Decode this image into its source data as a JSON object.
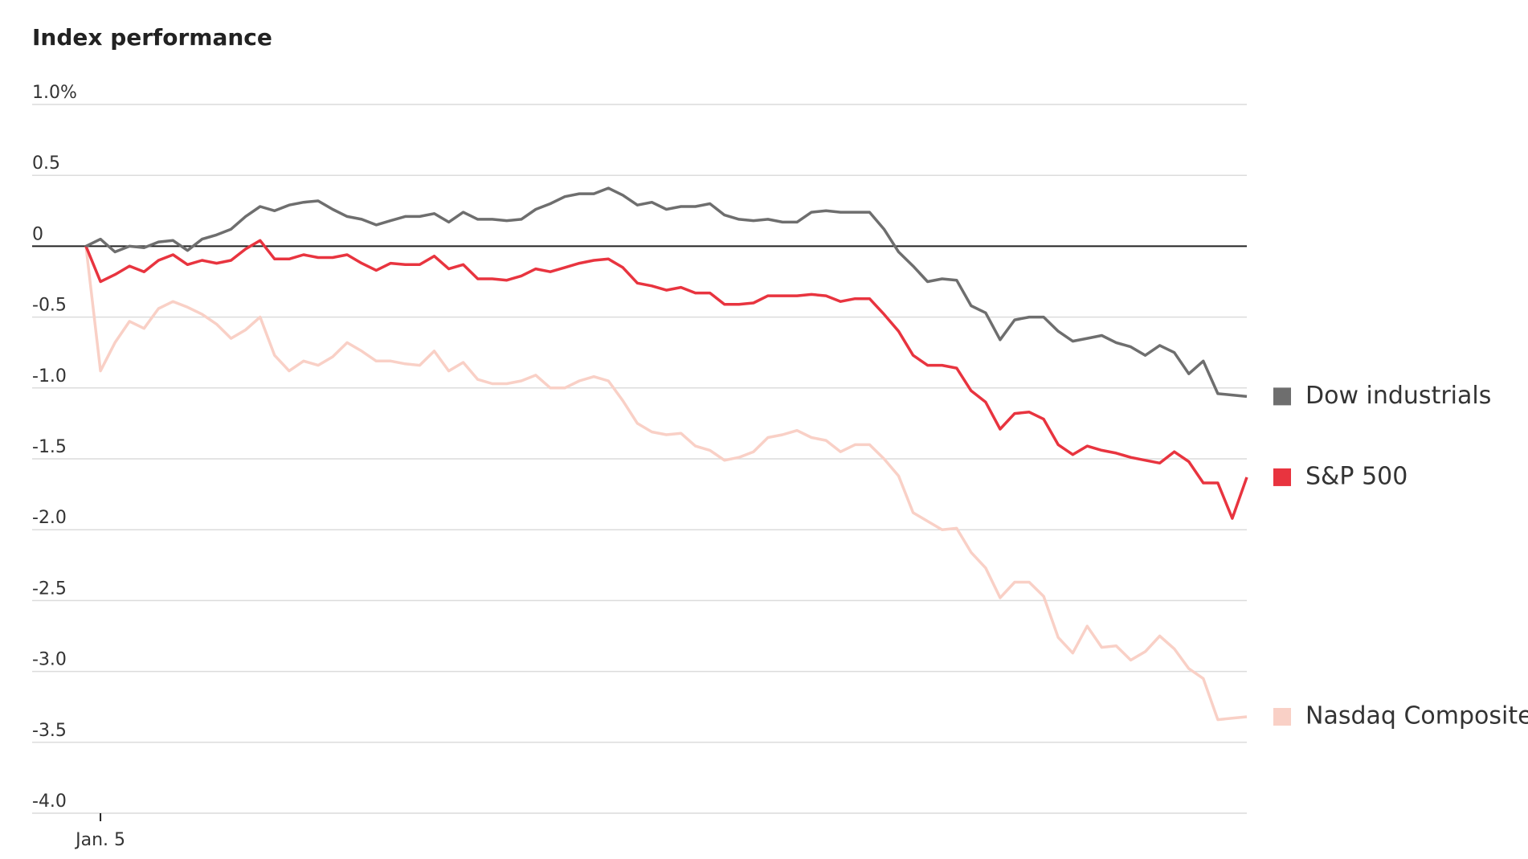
{
  "chart_data": {
    "type": "line",
    "title": "Index performance",
    "categories": [
      null,
      "Jan. 5",
      null,
      null,
      null,
      null,
      null,
      null,
      null,
      null,
      null,
      null,
      null,
      null,
      null,
      null,
      null,
      null,
      null,
      null,
      null,
      null,
      null,
      null,
      null,
      null,
      null,
      null,
      null,
      null,
      null,
      null,
      null,
      null,
      null,
      null,
      null,
      null,
      null,
      null,
      null,
      null,
      null,
      null,
      null,
      null,
      null,
      null,
      null,
      null,
      null,
      null,
      null,
      null,
      null,
      null,
      null,
      null,
      null,
      null,
      null,
      null,
      null,
      null,
      null,
      null,
      null,
      null,
      null,
      null,
      null,
      null,
      null,
      null,
      null,
      null,
      null,
      null,
      null,
      null,
      null
    ],
    "series": [
      {
        "name": "Dow industrials",
        "color": "#6e6e6e",
        "values": [
          0,
          0.05,
          -0.04,
          0,
          -0.01,
          0.03,
          0.04,
          -0.03,
          0.05,
          0.08,
          0.12,
          0.21,
          0.28,
          0.25,
          0.29,
          0.31,
          0.32,
          0.26,
          0.21,
          0.19,
          0.15,
          0.18,
          0.21,
          0.21,
          0.23,
          0.17,
          0.24,
          0.19,
          0.19,
          0.18,
          0.19,
          0.26,
          0.3,
          0.35,
          0.37,
          0.37,
          0.41,
          0.36,
          0.29,
          0.31,
          0.26,
          0.28,
          0.28,
          0.3,
          0.22,
          0.19,
          0.18,
          0.19,
          0.17,
          0.17,
          0.24,
          0.25,
          0.24,
          0.24,
          0.24,
          0.12,
          -0.04,
          -0.14,
          -0.25,
          -0.23,
          -0.24,
          -0.42,
          -0.47,
          -0.66,
          -0.52,
          -0.5,
          -0.5,
          -0.6,
          -0.67,
          -0.65,
          -0.63,
          -0.68,
          -0.71,
          -0.77,
          -0.7,
          -0.75,
          -0.9,
          -0.81,
          -1.04,
          -1.05,
          -1.06
        ]
      },
      {
        "name": "S&P 500",
        "color": "#e8343f",
        "values": [
          0,
          -0.25,
          -0.2,
          -0.14,
          -0.18,
          -0.1,
          -0.06,
          -0.13,
          -0.1,
          -0.12,
          -0.1,
          -0.02,
          0.04,
          -0.09,
          -0.09,
          -0.06,
          -0.08,
          -0.08,
          -0.06,
          -0.12,
          -0.17,
          -0.12,
          -0.13,
          -0.13,
          -0.07,
          -0.16,
          -0.13,
          -0.23,
          -0.23,
          -0.24,
          -0.21,
          -0.16,
          -0.18,
          -0.15,
          -0.12,
          -0.1,
          -0.09,
          -0.15,
          -0.26,
          -0.28,
          -0.31,
          -0.29,
          -0.33,
          -0.33,
          -0.41,
          -0.41,
          -0.4,
          -0.35,
          -0.35,
          -0.35,
          -0.34,
          -0.35,
          -0.39,
          -0.37,
          -0.37,
          -0.48,
          -0.6,
          -0.77,
          -0.84,
          -0.84,
          -0.86,
          -1.02,
          -1.1,
          -1.29,
          -1.18,
          -1.17,
          -1.22,
          -1.4,
          -1.47,
          -1.41,
          -1.44,
          -1.46,
          -1.49,
          -1.51,
          -1.53,
          -1.45,
          -1.52,
          -1.67,
          -1.67,
          -1.92,
          -1.63
        ]
      },
      {
        "name": "Nasdaq Composite",
        "color": "#f9d0c6",
        "values": [
          0,
          -0.88,
          -0.68,
          -0.53,
          -0.58,
          -0.44,
          -0.39,
          -0.43,
          -0.48,
          -0.55,
          -0.65,
          -0.59,
          -0.5,
          -0.77,
          -0.88,
          -0.81,
          -0.84,
          -0.78,
          -0.68,
          -0.74,
          -0.81,
          -0.81,
          -0.83,
          -0.84,
          -0.74,
          -0.88,
          -0.82,
          -0.94,
          -0.97,
          -0.97,
          -0.95,
          -0.91,
          -1.0,
          -1.0,
          -0.95,
          -0.92,
          -0.95,
          -1.09,
          -1.25,
          -1.31,
          -1.33,
          -1.32,
          -1.41,
          -1.44,
          -1.51,
          -1.49,
          -1.45,
          -1.35,
          -1.33,
          -1.3,
          -1.35,
          -1.37,
          -1.45,
          -1.4,
          -1.4,
          -1.5,
          -1.62,
          -1.88,
          -1.94,
          -2.0,
          -1.99,
          -2.16,
          -2.27,
          -2.48,
          -2.37,
          -2.37,
          -2.47,
          -2.76,
          -2.87,
          -2.68,
          -2.83,
          -2.82,
          -2.92,
          -2.86,
          -2.75,
          -2.84,
          -2.98,
          -3.05,
          -3.34,
          -3.33,
          -3.32
        ]
      }
    ],
    "ylim": [
      -4,
      1
    ],
    "yticks": [
      {
        "value": 1,
        "label": "1.0%"
      },
      0.5,
      0,
      -0.5,
      {
        "value": -1,
        "label": "-1.0"
      },
      -1.5,
      {
        "value": -2,
        "label": "-2.0"
      },
      -2.5,
      {
        "value": -3,
        "label": "-3.0"
      },
      -3.5,
      {
        "value": -4,
        "label": "-4.0"
      }
    ],
    "grid": true,
    "legend": "right"
  }
}
